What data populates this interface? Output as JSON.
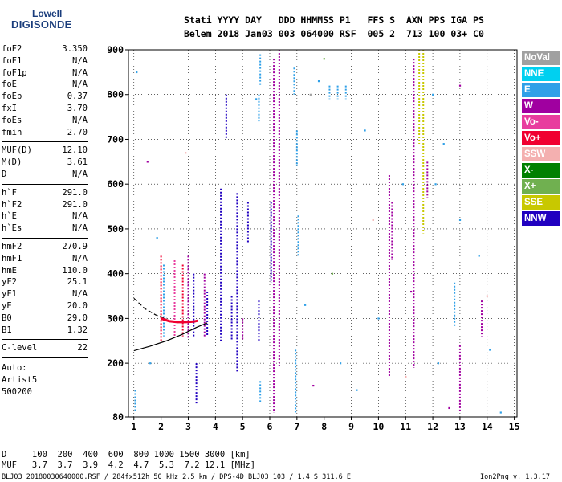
{
  "logo": {
    "top": "Lowell",
    "main": "DIGISONDE"
  },
  "header": {
    "line1": "Stati YYYY DAY   DDD HHMMSS P1   FFS S  AXN PPS IGA PS",
    "line2": "Belem 2018 Jan03 003 064000 RSF  005 2  713 100 03+ C0"
  },
  "params": {
    "g1": [
      {
        "name": "foF2",
        "value": "3.350"
      },
      {
        "name": "foF1",
        "value": "N/A"
      },
      {
        "name": "foF1p",
        "value": "N/A"
      },
      {
        "name": "foE",
        "value": "N/A"
      },
      {
        "name": "foEp",
        "value": "0.37"
      },
      {
        "name": "fxI",
        "value": "3.70"
      },
      {
        "name": "foEs",
        "value": "N/A"
      },
      {
        "name": "fmin",
        "value": "2.70"
      }
    ],
    "g2": [
      {
        "name": "MUF(D)",
        "value": "12.10"
      },
      {
        "name": "M(D)",
        "value": "3.61"
      },
      {
        "name": "D",
        "value": "N/A"
      }
    ],
    "g3": [
      {
        "name": "h`F",
        "value": "291.0"
      },
      {
        "name": "h`F2",
        "value": "291.0"
      },
      {
        "name": "h`E",
        "value": "N/A"
      },
      {
        "name": "h`Es",
        "value": "N/A"
      }
    ],
    "g4": [
      {
        "name": "hmF2",
        "value": "270.9"
      },
      {
        "name": "hmF1",
        "value": "N/A"
      },
      {
        "name": "hmE",
        "value": "110.0"
      },
      {
        "name": "yF2",
        "value": "25.1"
      },
      {
        "name": "yF1",
        "value": "N/A"
      },
      {
        "name": "yE",
        "value": "20.0"
      },
      {
        "name": "B0",
        "value": "29.0"
      },
      {
        "name": "B1",
        "value": "1.32"
      }
    ],
    "g5": [
      {
        "name": "C-level",
        "value": "22"
      }
    ],
    "auto": [
      "Auto:",
      "Artist5",
      "500200"
    ]
  },
  "legend": [
    {
      "label": "NoVal",
      "color": "#a0a0a0"
    },
    {
      "label": "NNE",
      "color": "#00d0f0"
    },
    {
      "label": "E",
      "color": "#2fa0e8"
    },
    {
      "label": "W",
      "color": "#a000a0"
    },
    {
      "label": "Vo-",
      "color": "#e83c9e"
    },
    {
      "label": "Vo+",
      "color": "#f00030"
    },
    {
      "label": "SSW",
      "color": "#f4b0b0"
    },
    {
      "label": "X-",
      "color": "#008000"
    },
    {
      "label": "X+",
      "color": "#70b050"
    },
    {
      "label": "SSE",
      "color": "#c8c800"
    },
    {
      "label": "NNW",
      "color": "#2000c0"
    }
  ],
  "footer": {
    "d_row": "D     100  200  400  600  800 1000 1500 3000 [km]",
    "muf_row": "MUF   3.7  3.7  3.9  4.2  4.7  5.3  7.2 12.1 [MHz]",
    "file_info": "BLJ03_20180030640000.RSF / 284fx512h 50 kHz 2.5 km / DPS-4D BLJ03 103 / 1.4 S 311.6 E",
    "version": "Ion2Png v. 1.3.17"
  },
  "chart_data": {
    "type": "scatter",
    "xlim": [
      0.8,
      15.1
    ],
    "ylim": [
      80,
      900
    ],
    "x_ticks": [
      1,
      2,
      3,
      4,
      5,
      6,
      7,
      8,
      9,
      10,
      11,
      12,
      13,
      14,
      15
    ],
    "y_ticks": [
      80,
      200,
      300,
      400,
      500,
      600,
      700,
      800,
      900
    ],
    "grid": true,
    "legend_position": "right",
    "traces": [
      {
        "name": "o-trace",
        "color": "#f00030",
        "points": [
          [
            2.0,
            300
          ],
          [
            2.3,
            294
          ],
          [
            2.6,
            292
          ],
          [
            2.9,
            292
          ],
          [
            3.2,
            293
          ],
          [
            3.35,
            295
          ]
        ]
      },
      {
        "name": "x-trace",
        "color": "#000000",
        "points": [
          [
            1.0,
            228
          ],
          [
            1.6,
            238
          ],
          [
            2.2,
            250
          ],
          [
            2.8,
            265
          ],
          [
            3.3,
            280
          ],
          [
            3.7,
            290
          ]
        ]
      },
      {
        "name": "o-extrapolated",
        "color": "#000000",
        "dashed": true,
        "points": [
          [
            1.0,
            345
          ],
          [
            1.4,
            322
          ],
          [
            1.8,
            308
          ],
          [
            2.2,
            300
          ]
        ]
      }
    ],
    "echo_columns": [
      {
        "x": 2.0,
        "y": [
          250,
          440
        ],
        "color": "#f00030"
      },
      {
        "x": 2.1,
        "y": [
          260,
          420
        ],
        "color": "#2fa0e8"
      },
      {
        "x": 2.5,
        "y": [
          260,
          430
        ],
        "color": "#e83c9e"
      },
      {
        "x": 2.8,
        "y": [
          260,
          420
        ],
        "color": "#f00030"
      },
      {
        "x": 3.0,
        "y": [
          255,
          440
        ],
        "color": "#a000a0"
      },
      {
        "x": 3.2,
        "y": [
          260,
          400
        ],
        "color": "#2000c0"
      },
      {
        "x": 3.6,
        "y": [
          260,
          400
        ],
        "color": "#a000a0"
      },
      {
        "x": 3.7,
        "y": [
          260,
          360
        ],
        "color": "#2000c0"
      },
      {
        "x": 3.3,
        "y": [
          110,
          200
        ],
        "color": "#2000c0"
      },
      {
        "x": 4.2,
        "y": [
          250,
          590
        ],
        "color": "#2000c0"
      },
      {
        "x": 4.4,
        "y": [
          700,
          800
        ],
        "color": "#2000c0"
      },
      {
        "x": 4.6,
        "y": [
          250,
          350
        ],
        "color": "#2000c0"
      },
      {
        "x": 4.8,
        "y": [
          180,
          580
        ],
        "color": "#2000c0"
      },
      {
        "x": 5.0,
        "y": [
          250,
          300
        ],
        "color": "#a000a0"
      },
      {
        "x": 5.2,
        "y": [
          470,
          560
        ],
        "color": "#2000c0"
      },
      {
        "x": 5.6,
        "y": [
          250,
          340
        ],
        "color": "#2000c0"
      },
      {
        "x": 5.6,
        "y": [
          740,
          800
        ],
        "color": "#2fa0e8"
      },
      {
        "x": 5.65,
        "y": [
          820,
          890
        ],
        "color": "#2fa0e8"
      },
      {
        "x": 6.15,
        "y": [
          90,
          880
        ],
        "color": "#a000a0"
      },
      {
        "x": 6.35,
        "y": [
          190,
          900
        ],
        "color": "#a000a0"
      },
      {
        "x": 6.05,
        "y": [
          380,
          560
        ],
        "color": "#2000c0"
      },
      {
        "x": 7.0,
        "y": [
          640,
          720
        ],
        "color": "#2fa0e8"
      },
      {
        "x": 7.05,
        "y": [
          440,
          530
        ],
        "color": "#2fa0e8"
      },
      {
        "x": 6.9,
        "y": [
          800,
          860
        ],
        "color": "#2fa0e8"
      },
      {
        "x": 8.2,
        "y": [
          790,
          820
        ],
        "color": "#2fa0e8"
      },
      {
        "x": 8.5,
        "y": [
          790,
          820
        ],
        "color": "#2fa0e8"
      },
      {
        "x": 8.8,
        "y": [
          790,
          820
        ],
        "color": "#2fa0e8"
      },
      {
        "x": 10.4,
        "y": [
          170,
          620
        ],
        "color": "#a000a0"
      },
      {
        "x": 10.5,
        "y": [
          430,
          560
        ],
        "color": "#a000a0"
      },
      {
        "x": 11.3,
        "y": [
          190,
          880
        ],
        "color": "#a000a0"
      },
      {
        "x": 11.5,
        "y": [
          690,
          900
        ],
        "color": "#c8c800"
      },
      {
        "x": 11.65,
        "y": [
          490,
          900
        ],
        "color": "#c8c800"
      },
      {
        "x": 11.8,
        "y": [
          570,
          650
        ],
        "color": "#a000a0"
      },
      {
        "x": 12.8,
        "y": [
          280,
          380
        ],
        "color": "#2fa0e8"
      },
      {
        "x": 13.0,
        "y": [
          90,
          240
        ],
        "color": "#a000a0"
      },
      {
        "x": 13.8,
        "y": [
          260,
          340
        ],
        "color": "#a000a0"
      },
      {
        "x": 1.05,
        "y": [
          90,
          140
        ],
        "color": "#2fa0e8"
      },
      {
        "x": 6.95,
        "y": [
          90,
          230
        ],
        "color": "#2fa0e8"
      },
      {
        "x": 5.65,
        "y": [
          110,
          160
        ],
        "color": "#2fa0e8"
      }
    ],
    "scatter_points": [
      {
        "x": 1.1,
        "y": 850,
        "color": "#2fa0e8"
      },
      {
        "x": 1.5,
        "y": 650,
        "color": "#a000a0"
      },
      {
        "x": 1.6,
        "y": 200,
        "color": "#2fa0e8"
      },
      {
        "x": 1.85,
        "y": 480,
        "color": "#2fa0e8"
      },
      {
        "x": 2.9,
        "y": 670,
        "color": "#f4b0b0"
      },
      {
        "x": 5.5,
        "y": 790,
        "color": "#2fa0e8"
      },
      {
        "x": 7.5,
        "y": 800,
        "color": "#a0a0a0"
      },
      {
        "x": 7.8,
        "y": 830,
        "color": "#2fa0e8"
      },
      {
        "x": 8.0,
        "y": 880,
        "color": "#70b050"
      },
      {
        "x": 9.5,
        "y": 720,
        "color": "#2fa0e8"
      },
      {
        "x": 9.8,
        "y": 520,
        "color": "#f4b0b0"
      },
      {
        "x": 10.9,
        "y": 600,
        "color": "#2fa0e8"
      },
      {
        "x": 12.1,
        "y": 600,
        "color": "#2fa0e8"
      },
      {
        "x": 12.4,
        "y": 690,
        "color": "#2fa0e8"
      },
      {
        "x": 13.0,
        "y": 520,
        "color": "#2fa0e8"
      },
      {
        "x": 13.0,
        "y": 820,
        "color": "#a000a0"
      },
      {
        "x": 14.5,
        "y": 90,
        "color": "#2fa0e8"
      },
      {
        "x": 14.1,
        "y": 230,
        "color": "#2fa0e8"
      },
      {
        "x": 9.2,
        "y": 140,
        "color": "#2fa0e8"
      },
      {
        "x": 8.6,
        "y": 200,
        "color": "#2fa0e8"
      },
      {
        "x": 12.6,
        "y": 100,
        "color": "#a000a0"
      },
      {
        "x": 12.2,
        "y": 200,
        "color": "#2fa0e8"
      },
      {
        "x": 11.0,
        "y": 170,
        "color": "#f4b0b0"
      },
      {
        "x": 7.3,
        "y": 330,
        "color": "#2fa0e8"
      },
      {
        "x": 8.3,
        "y": 400,
        "color": "#70b050"
      },
      {
        "x": 10.0,
        "y": 300,
        "color": "#2fa0e8"
      },
      {
        "x": 11.2,
        "y": 360,
        "color": "#a000a0"
      },
      {
        "x": 13.7,
        "y": 440,
        "color": "#2fa0e8"
      },
      {
        "x": 14.0,
        "y": 350,
        "color": "#f4b0b0"
      },
      {
        "x": 12.0,
        "y": 800,
        "color": "#2fa0e8"
      },
      {
        "x": 7.6,
        "y": 150,
        "color": "#a000a0"
      }
    ]
  }
}
